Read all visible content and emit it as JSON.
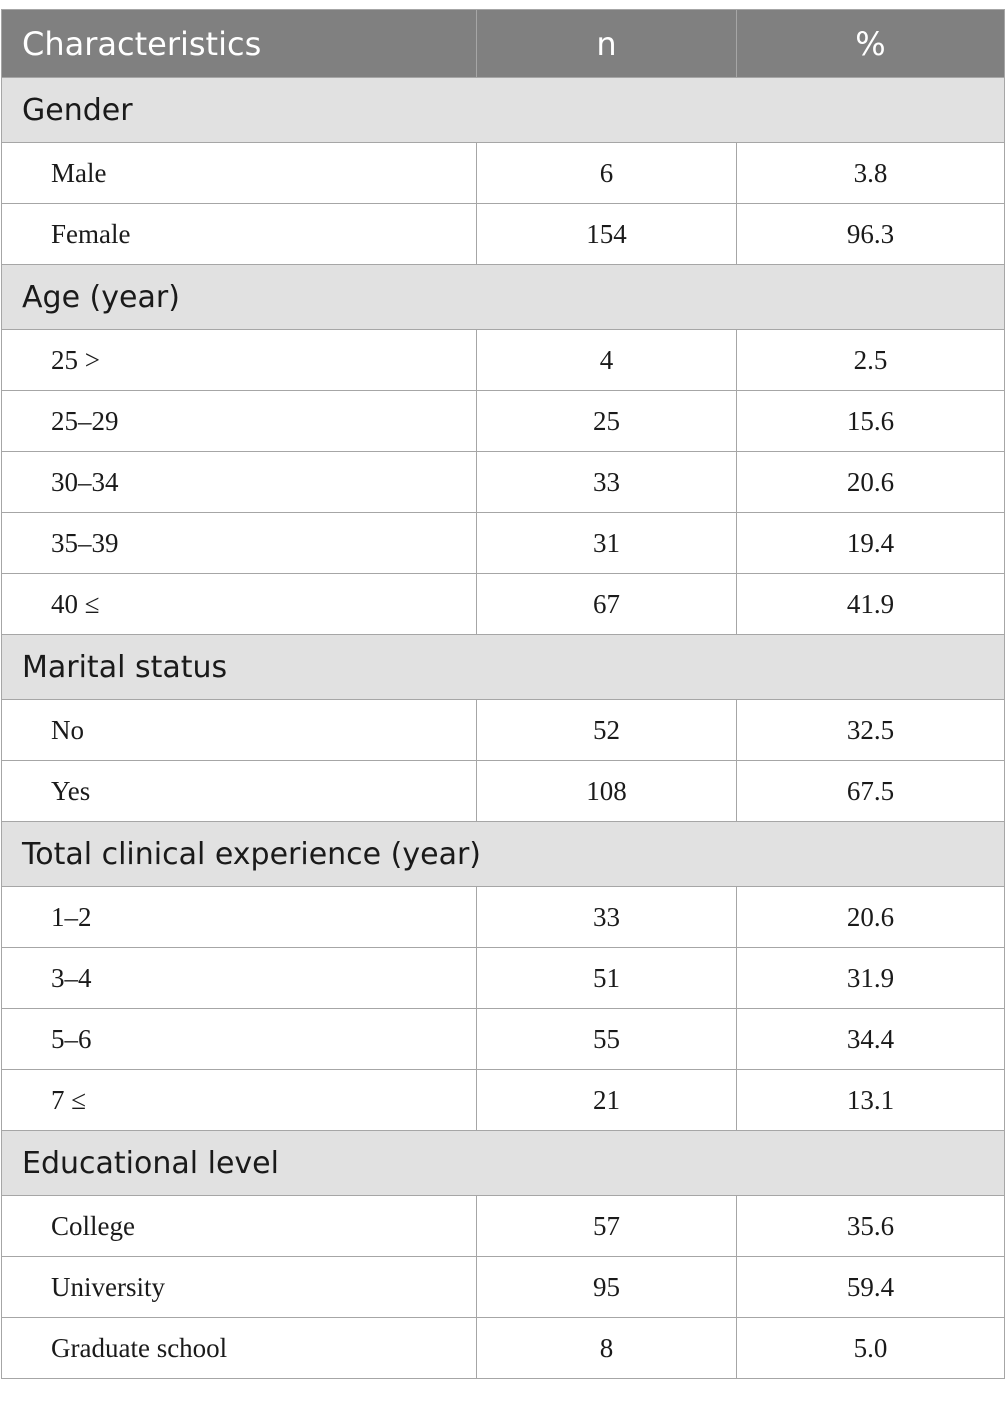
{
  "header": {
    "characteristics": "Characteristics",
    "n": "n",
    "percent": "%"
  },
  "sections": [
    {
      "title": "Gender",
      "rows": [
        {
          "label": "Male",
          "n": "6",
          "pct": "3.8"
        },
        {
          "label": "Female",
          "n": "154",
          "pct": "96.3"
        }
      ]
    },
    {
      "title": "Age (year)",
      "rows": [
        {
          "label": "25 >",
          "n": "4",
          "pct": "2.5"
        },
        {
          "label": "25–29",
          "n": "25",
          "pct": "15.6"
        },
        {
          "label": "30–34",
          "n": "33",
          "pct": "20.6"
        },
        {
          "label": "35–39",
          "n": "31",
          "pct": "19.4"
        },
        {
          "label": "40 ≤",
          "n": "67",
          "pct": "41.9"
        }
      ]
    },
    {
      "title": "Marital status",
      "rows": [
        {
          "label": "No",
          "n": "52",
          "pct": "32.5"
        },
        {
          "label": "Yes",
          "n": "108",
          "pct": "67.5"
        }
      ]
    },
    {
      "title": "Total clinical experience (year)",
      "rows": [
        {
          "label": "1–2",
          "n": "33",
          "pct": "20.6"
        },
        {
          "label": "3–4",
          "n": "51",
          "pct": "31.9"
        },
        {
          "label": "5–6",
          "n": "55",
          "pct": "34.4"
        },
        {
          "label": "7 ≤",
          "n": "21",
          "pct": "13.1"
        }
      ]
    },
    {
      "title": "Educational level",
      "rows": [
        {
          "label": "College",
          "n": "57",
          "pct": "35.6"
        },
        {
          "label": "University",
          "n": "95",
          "pct": "59.4"
        },
        {
          "label": "Graduate school",
          "n": "8",
          "pct": "5.0"
        }
      ]
    }
  ]
}
